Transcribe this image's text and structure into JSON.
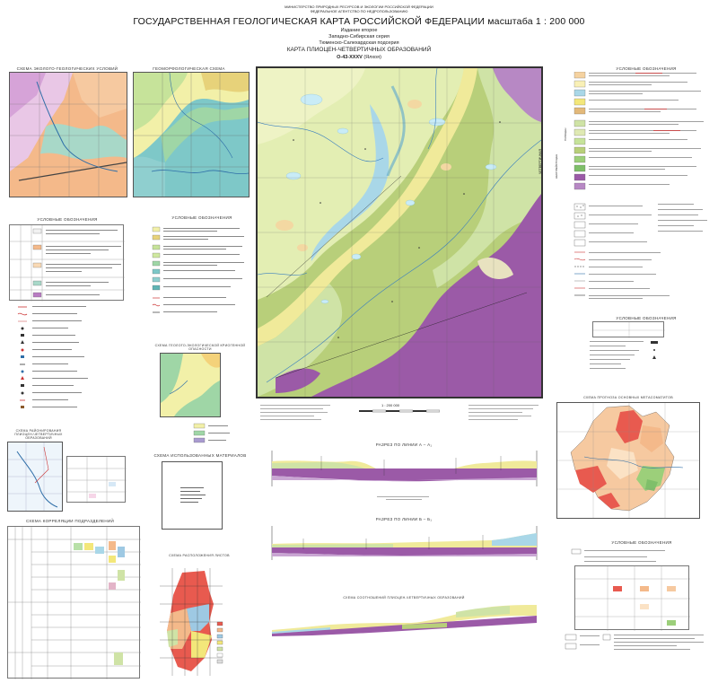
{
  "header": {
    "ministry_line1": "МИНИСТЕРСТВО ПРИРОДНЫХ РЕСУРСОВ И ЭКОЛОГИИ РОССИЙСКОЙ ФЕДЕРАЦИИ",
    "ministry_line2": "ФЕДЕРАЛЬНОЕ АГЕНТСТВО ПО НЕДРОПОЛЬЗОВАНИЮ",
    "title": "ГОСУДАРСТВЕННАЯ ГЕОЛОГИЧЕСКАЯ КАРТА РОССИЙСКОЙ ФЕДЕРАЦИИ  масштаба  1 : 200 000",
    "edition": "Издание второе",
    "series": "Западно-Сибирская серия",
    "subseries": "Тюменско-Салехардская подсерия",
    "map_name": "КАРТА ПЛИОЦЕН-ЧЕТВЕРТИЧНЫХ ОБРАЗОВАНИЙ",
    "sheet": "O-43-XXXV",
    "sheet_name": "(Ялхоя)"
  },
  "insets": {
    "eco_scheme_title": "СХЕМА ЭКОЛОГО-ГЕОЛОГИЧЕСКИХ УСЛОВИЙ",
    "geomorph_title": "ГЕОМОРФОЛОГИЧЕСКАЯ СХЕМА",
    "geomorph_legend_title": "УСЛОВНЫЕ ОБОЗНАЧЕНИЯ",
    "eco_legend_title": "УСЛОВНЫЕ ОБОЗНАЧЕНИЯ",
    "landscape_scheme_title": "СХЕМА ГЕОЛОГО-ЭКОЛОГИЧЕСКОЙ КРИОГЕННОЙ ОПАСНОСТИ",
    "materials_scheme_title": "СХЕМА ИСПОЛЬЗОВАННЫХ МАТЕРИАЛОВ",
    "correlation_title": "СХЕМА КОРРЕЛЯЦИИ ПОДРАЗДЕЛЕНИЙ",
    "location_title": "СХЕМА РАСПОЛОЖЕНИЯ ЛИСТОВ",
    "zoning_title": "СХЕМА РАЙОНИРОВАНИЯ ПЛИОЦЕН-ЧЕТВЕРТИЧНЫХ ОБРАЗОВАНИЙ",
    "distribution_title": "СХЕМА ПРОГНОЗА ОСНОВНЫХ МЕТАСОМАТИТОВ",
    "right_legend_title": "УСЛОВНЫЕ ОБОЗНАЧЕНИЯ",
    "right_legend2_title": "УСЛОВНЫЕ ОБОЗНАЧЕНИЯ",
    "right_legend3_title": "УСЛОВНЫЕ ОБОЗНАЧЕНИЯ"
  },
  "main_map": {
    "scale_label": "1 : 200 000",
    "colors": {
      "lowland_green": "#cfe3a6",
      "terrace_yellow": "#f0ea9a",
      "floodplain_blue": "#a9d7e8",
      "bog_purple": "#9b5aa7",
      "upland_olive": "#b8cf7a",
      "lake_blue": "#bfe6f2"
    }
  },
  "sections": {
    "section1_title": "РАЗРЕЗ ПО ЛИНИИ  А – А₁",
    "section2_title": "РАЗРЕЗ ПО ЛИНИИ  Б – Б₁",
    "section3_title": "СХЕМА СООТНОШЕНИЙ ПЛИОЦЕН-ЧЕТВЕРТИЧНЫХ ОБРАЗОВАНИЙ"
  },
  "vertical_side_labels": {
    "quaternary": "ЧЕТВЕРТИЧНАЯ",
    "neopleistocene": "НЕОПЛЕЙСТОЦЕН",
    "holocene": "ГОЛОЦЕН"
  }
}
